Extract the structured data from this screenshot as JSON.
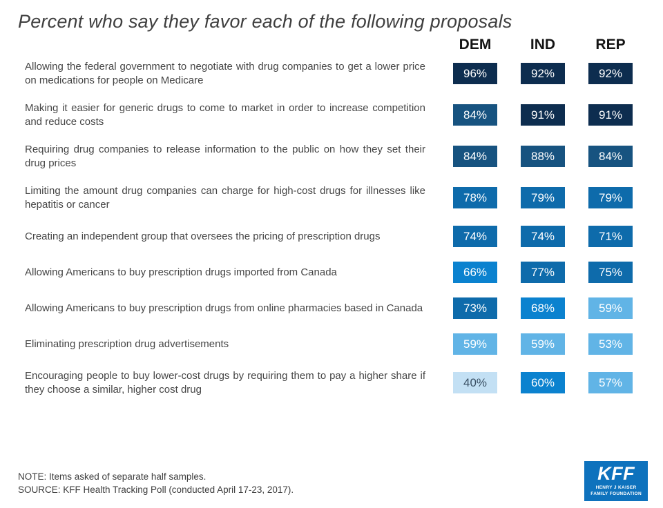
{
  "title": "Percent who say they favor each of the following proposals",
  "chart_data": {
    "type": "heatmap",
    "title": "Percent who say they favor each of the following proposals",
    "columns": [
      "DEM",
      "IND",
      "REP"
    ],
    "value_suffix": "%",
    "rows": [
      {
        "label": "Allowing the federal government to negotiate with drug companies to get a lower price on medications for people on Medicare",
        "values": [
          96,
          92,
          92
        ]
      },
      {
        "label": "Making it easier for generic drugs to come to market in order to increase competition and reduce costs",
        "values": [
          84,
          91,
          91
        ]
      },
      {
        "label": "Requiring drug companies to release information to the public on how they set their drug prices",
        "values": [
          84,
          88,
          84
        ]
      },
      {
        "label": "Limiting the amount drug companies can charge for high-cost drugs for illnesses like hepatitis or cancer",
        "values": [
          78,
          79,
          79
        ]
      },
      {
        "label": "Creating an independent group that oversees the pricing of prescription drugs",
        "values": [
          74,
          74,
          71
        ]
      },
      {
        "label": "Allowing Americans to buy prescription drugs imported from Canada",
        "values": [
          66,
          77,
          75
        ]
      },
      {
        "label": "Allowing Americans to buy prescription drugs from online pharmacies based in Canada",
        "values": [
          73,
          68,
          59
        ]
      },
      {
        "label": "Eliminating prescription drug advertisements",
        "values": [
          59,
          59,
          53
        ]
      },
      {
        "label": "Encouraging people to buy lower-cost drugs by requiring them to pay a higher share if they choose a similar, higher cost drug",
        "values": [
          40,
          60,
          57
        ]
      }
    ],
    "legend": "cells shaded by value band: darker blue = higher percent"
  },
  "footer": {
    "note": "NOTE: Items asked of separate half samples.",
    "source": "SOURCE: KFF Health Tracking Poll (conducted April 17-23, 2017)."
  },
  "logo": {
    "text": "KFF",
    "line1": "HENRY J KAISER",
    "line2": "FAMILY FOUNDATION"
  },
  "colors": {
    "band_90_plus": "#0d2d4f",
    "band_80s": "#175380",
    "band_70s": "#0e6bab",
    "band_60s": "#0b82cf",
    "band_50s": "#61b4e6",
    "band_below_50": "#c3e0f4",
    "cell_text_light": "#ffffff",
    "cell_text_dark": "#3a5064",
    "logo_bg": "#0e72bd"
  }
}
